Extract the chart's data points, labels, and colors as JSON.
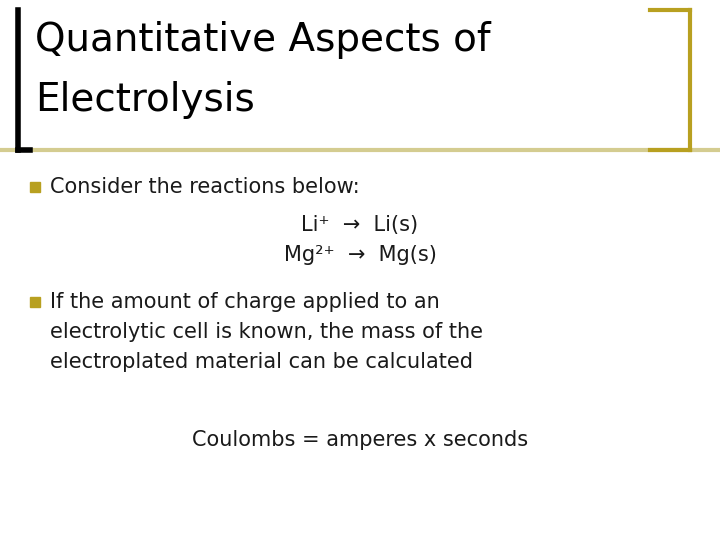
{
  "title_line1": "Quantitative Aspects of",
  "title_line2": "Electrolysis",
  "title_fontsize": 28,
  "title_color": "#000000",
  "title_bar_color": "#000000",
  "bracket_color": "#b8a020",
  "separator_color": "#d4cc90",
  "bullet_color": "#b8a020",
  "bullet1_text": "Consider the reactions below:",
  "bullet1_line2": "Li⁺  →  Li(s)",
  "bullet1_line3": "Mg²⁺  →  Mg(s)",
  "bullet2_line1": "If the amount of charge applied to an",
  "bullet2_line2": "electrolytic cell is known, the mass of the",
  "bullet2_line3": "electroplated material can be calculated",
  "footer_text": "Coulombs = amperes x seconds",
  "bg_color": "#ffffff",
  "text_color": "#1a1a1a",
  "body_fontsize": 15,
  "footer_fontsize": 15
}
